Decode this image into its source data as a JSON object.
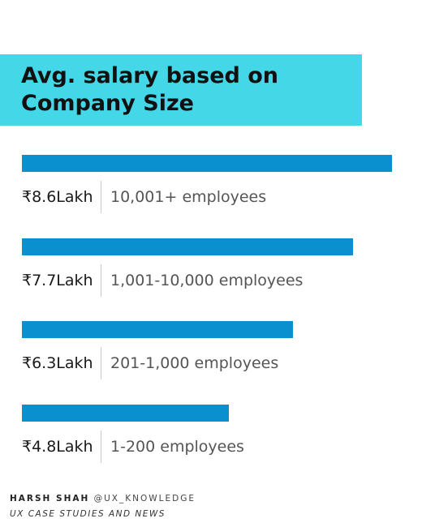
{
  "chart_data": {
    "type": "bar",
    "orientation": "horizontal",
    "title": "Avg. salary based on Company Size",
    "title_lines": [
      "Avg. salary based on",
      "Company Size"
    ],
    "categories": [
      "10,001+ employees",
      "1,001-10,000 employees",
      "201-1,000 employees",
      "1-200 employees"
    ],
    "values": [
      8.6,
      7.7,
      6.3,
      4.8
    ],
    "value_labels": [
      "₹8.6Lakh",
      "₹7.7Lakh",
      "₹6.3Lakh",
      "₹4.8Lakh"
    ],
    "unit": "Lakh",
    "xlim": [
      0,
      8.6
    ],
    "grid": false,
    "legend": "none",
    "colors": {
      "bar": "#0a8fcf",
      "title_band": "#43d7e8",
      "divider": "#c9c9c9"
    }
  },
  "footer": {
    "author": "HARSH SHAH",
    "handle": "@UX_KNOWLEDGE",
    "tagline": "UX CASE STUDIES AND NEWS"
  }
}
